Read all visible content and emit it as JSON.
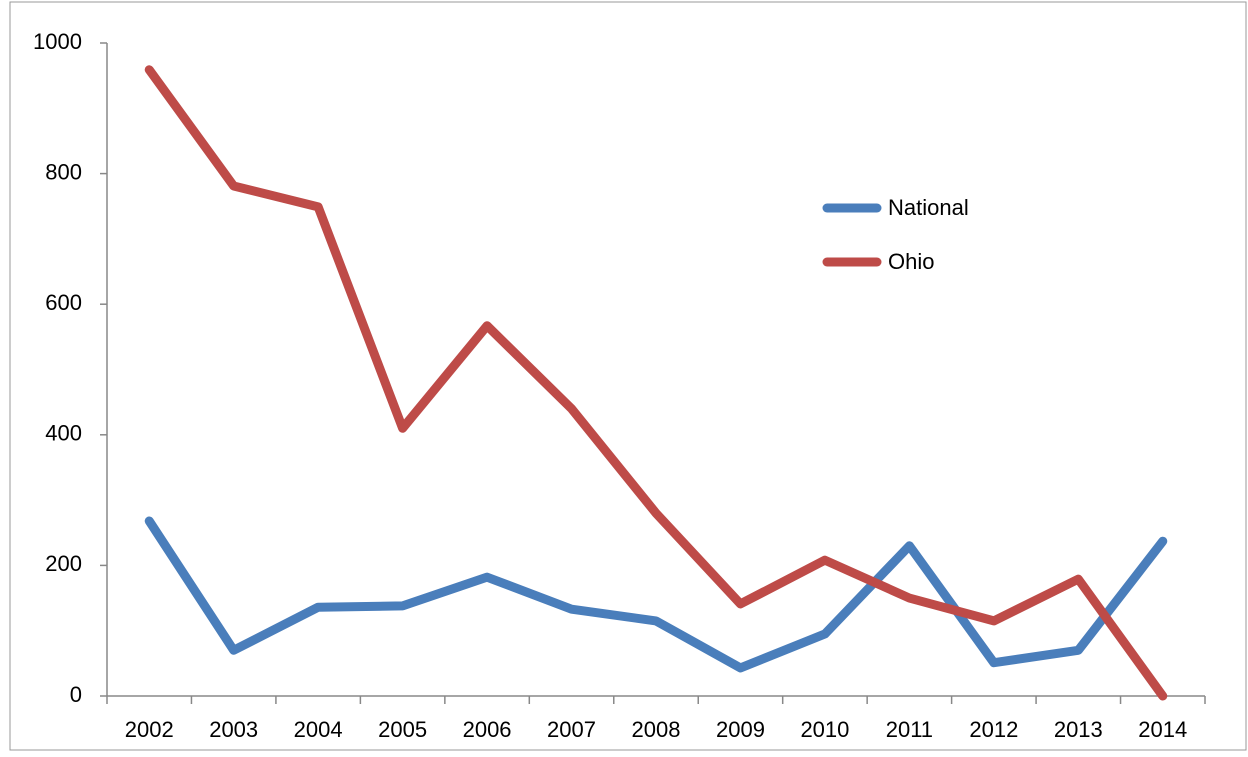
{
  "chart_data": {
    "type": "line",
    "categories": [
      "2002",
      "2003",
      "2004",
      "2005",
      "2006",
      "2007",
      "2008",
      "2009",
      "2010",
      "2011",
      "2012",
      "2013",
      "2014"
    ],
    "series": [
      {
        "name": "National",
        "color": "#4a7ebb",
        "values": [
          268,
          70,
          136,
          138,
          182,
          133,
          115,
          43,
          95,
          230,
          51,
          70,
          237
        ]
      },
      {
        "name": "Ohio",
        "color": "#be4b48",
        "values": [
          959,
          781,
          749,
          410,
          567,
          440,
          280,
          141,
          208,
          150,
          115,
          179,
          0
        ]
      }
    ],
    "ylim": [
      0,
      1000
    ],
    "yticks": [
      0,
      200,
      400,
      600,
      800,
      1000
    ],
    "grid": false,
    "legend": "upper right"
  }
}
